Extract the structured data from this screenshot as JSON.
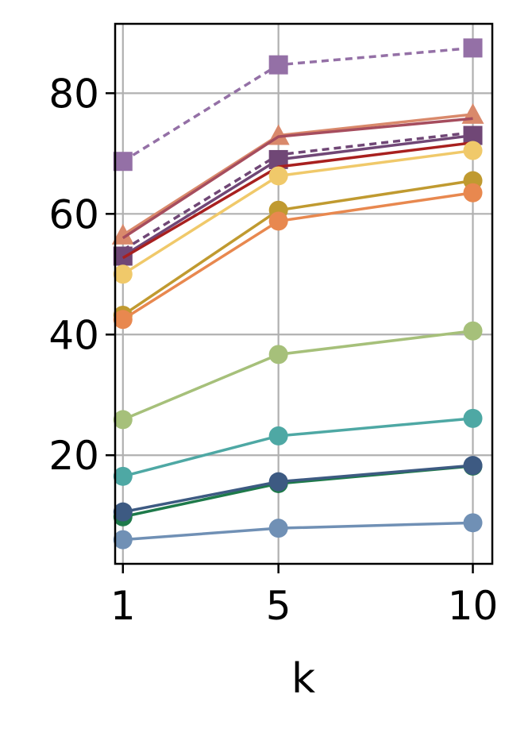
{
  "chart_data": {
    "type": "line",
    "title": "",
    "xlabel": "k",
    "ylabel": "",
    "x": [
      1,
      5,
      10
    ],
    "x_tick_labels": [
      "1",
      "5",
      "10"
    ],
    "y_ticks": [
      20,
      40,
      60,
      80
    ],
    "y_tick_labels": [
      "20",
      "40",
      "60",
      "80"
    ],
    "xlim": [
      0.8,
      10.5
    ],
    "ylim": [
      2,
      91.5
    ],
    "grid": true,
    "legend": "none",
    "series": [
      {
        "values": [
          68.7,
          84.7,
          87.5
        ],
        "color": "#9470a6",
        "marker": "square",
        "dashed": true
      },
      {
        "values": [
          56.5,
          73.0,
          76.5
        ],
        "color": "#d9896b",
        "marker": "triangle",
        "dashed": false
      },
      {
        "values": [
          56.0,
          72.8,
          75.8
        ],
        "color": "#a64d5e",
        "marker": "none",
        "dashed": false
      },
      {
        "values": [
          54.0,
          69.8,
          73.5
        ],
        "color": "#704776",
        "marker": "none",
        "dashed": true
      },
      {
        "values": [
          53.0,
          69.0,
          73.0
        ],
        "color": "#704776",
        "marker": "square",
        "dashed": false
      },
      {
        "values": [
          52.7,
          67.8,
          71.8
        ],
        "color": "#a8201f",
        "marker": "none",
        "dashed": false
      },
      {
        "values": [
          50.0,
          66.3,
          70.5
        ],
        "color": "#f0c96a",
        "marker": "circle",
        "dashed": false
      },
      {
        "values": [
          43.2,
          60.6,
          65.5
        ],
        "color": "#c09a30",
        "marker": "circle",
        "dashed": false
      },
      {
        "values": [
          42.5,
          58.8,
          63.5
        ],
        "color": "#e8884f",
        "marker": "circle",
        "dashed": false
      },
      {
        "values": [
          25.9,
          36.7,
          40.6
        ],
        "color": "#a6c07a",
        "marker": "circle",
        "dashed": false
      },
      {
        "values": [
          16.5,
          23.2,
          26.1
        ],
        "color": "#4ea8a4",
        "marker": "circle",
        "dashed": false
      },
      {
        "values": [
          9.8,
          15.3,
          18.2
        ],
        "color": "#1e7a4a",
        "marker": "circle",
        "dashed": false
      },
      {
        "values": [
          10.6,
          15.6,
          18.3
        ],
        "color": "#3d5a82",
        "marker": "circle",
        "dashed": false
      },
      {
        "values": [
          6.0,
          7.9,
          8.8
        ],
        "color": "#7090b5",
        "marker": "circle",
        "dashed": false
      }
    ]
  }
}
